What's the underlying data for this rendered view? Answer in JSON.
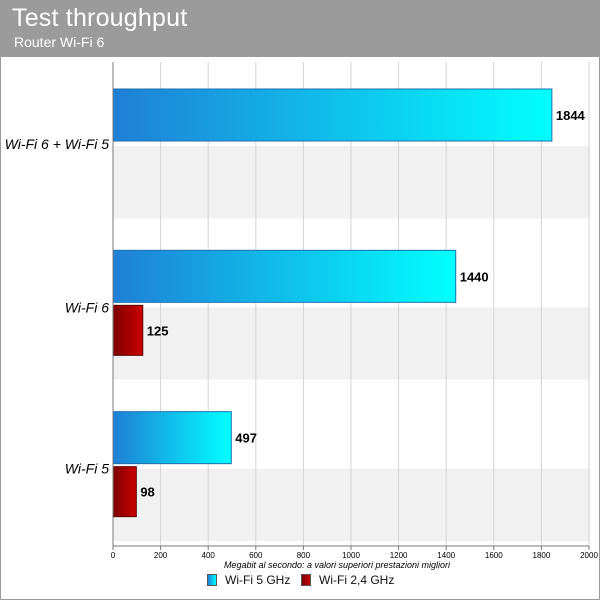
{
  "header": {
    "title": "Test throughput",
    "subtitle": "Router Wi-Fi 6"
  },
  "chart_data": {
    "type": "bar",
    "orientation": "horizontal",
    "categories": [
      "Wi-Fi 6 + Wi-Fi 5",
      "Wi-Fi 6",
      "Wi-Fi 5"
    ],
    "series": [
      {
        "name": "Wi-Fi 5 GHz",
        "values": [
          1844,
          1440,
          497
        ],
        "color": "#00ffff",
        "color_start": "#1f7fd6"
      },
      {
        "name": "Wi-Fi 2,4 GHz",
        "values": [
          null,
          125,
          98
        ],
        "color": "#cc0000",
        "color_start": "#7a0000"
      }
    ],
    "xlabel": "Megabit al secondo: a valori superiori prestazioni migliori",
    "xlim": [
      0,
      2000
    ],
    "xticks": [
      0,
      200,
      400,
      600,
      800,
      1000,
      1200,
      1400,
      1600,
      1800,
      2000
    ],
    "grid": true,
    "legend_position": "bottom"
  }
}
